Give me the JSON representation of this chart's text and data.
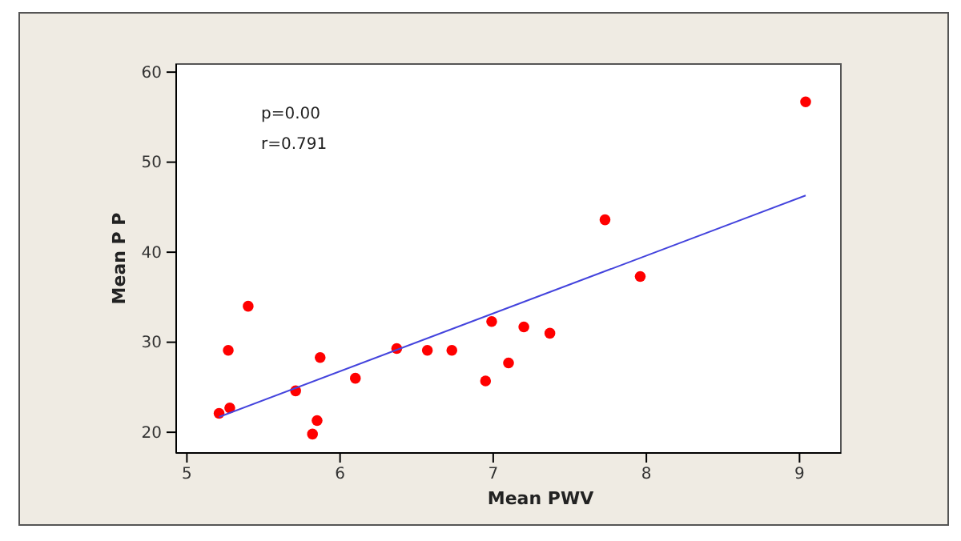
{
  "chart_data": {
    "type": "scatter",
    "xlabel": "Mean  PWV",
    "ylabel": "Mean  P P",
    "annotations": [
      "p=0.00",
      "r=0.791"
    ],
    "xlim": [
      4.93,
      9.27
    ],
    "ylim": [
      17.7,
      60.9
    ],
    "xticks": [
      5,
      6,
      7,
      8,
      9
    ],
    "yticks": [
      20,
      30,
      40,
      50,
      60
    ],
    "grid": false,
    "series": [
      {
        "marker": "circle",
        "color": "#ff0000",
        "x": [
          5.21,
          5.27,
          5.28,
          5.4,
          5.71,
          5.82,
          5.85,
          5.87,
          6.1,
          6.37,
          6.57,
          6.73,
          6.95,
          6.99,
          7.1,
          7.2,
          7.37,
          7.73,
          7.96,
          9.04
        ],
        "values": [
          22.1,
          29.1,
          22.7,
          34.0,
          24.6,
          19.8,
          21.3,
          28.3,
          26.0,
          29.3,
          29.1,
          29.1,
          25.7,
          32.3,
          27.7,
          31.7,
          31.0,
          43.6,
          37.3,
          56.7
        ]
      },
      {
        "type": "line",
        "marker": "none",
        "color": "#4444dd",
        "x": [
          5.21,
          9.04
        ],
        "values": [
          21.7,
          46.3
        ]
      }
    ]
  }
}
